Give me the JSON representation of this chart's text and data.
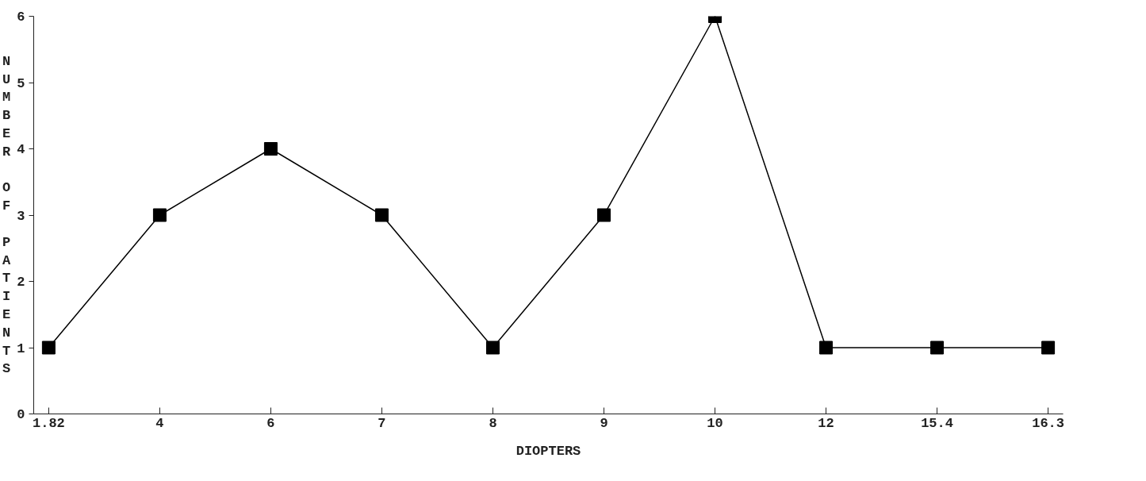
{
  "chart_data": {
    "type": "line",
    "xlabel": "DIOPTERS",
    "ylabel": "NUMBER OF PATIENTS",
    "categories": [
      "1.82",
      "4",
      "6",
      "7",
      "8",
      "9",
      "10",
      "12",
      "15.4",
      "16.3"
    ],
    "series": [
      {
        "color": "#000000",
        "values": [
          1,
          3,
          4,
          3,
          1,
          3,
          6,
          1,
          1,
          1
        ]
      }
    ],
    "ylim": [
      0,
      6
    ],
    "yticks": [
      0,
      1,
      2,
      3,
      4,
      5,
      6
    ],
    "grid": false,
    "marker": "square",
    "line_style": "solid"
  }
}
